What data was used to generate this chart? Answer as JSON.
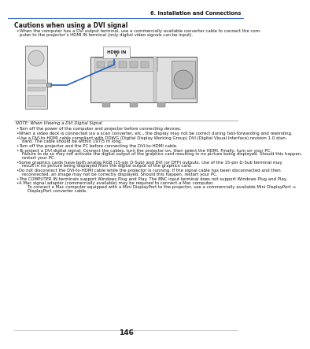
{
  "page_num": "146",
  "chapter_header": "6. Installation and Connections",
  "section_title": "Cautions when using a DVI signal",
  "bullet_intro_line1": "When the computer has a DVI output terminal, use a commercially available converter cable to connect the com-",
  "bullet_intro_line2": "puter to the projector’s HDMI IN terminal (only digital video signals can be input).",
  "note_title": "NOTE: When Viewing a DVI Digital Signal",
  "note_bullets": [
    "Turn off the power of the computer and projector before connecting devices.",
    "When a video deck is connected via a scan converter, etc., the display may not be correct during fast-forwarding and rewinding.",
    "Use a DVI-to-HDMI cable compliant with DDWG (Digital Display Working Group) DVI (Digital Visual Interface) revision 1.0 stan-\ndard. The cable should be within 197/5 m long.",
    "Turn off the projector and the PC before connecting the DVI-to-HDMI cable.",
    "To project a DVI digital signal: Connect the cables, turn the projector on, then select the HDMI. Finally, turn on your PC.\nFailure to do so may not activate the digital output of the graphics card resulting in no picture being displayed. Should this happen,\nrestart your PC.",
    "Some graphics cards have both analog RGB (15-pin D-Sub) and DVI (or DFP) outputs. Use of the 15-pin D-Sub terminal may\nresult in no picture being displayed from the digital output of the graphics card.",
    "Do not disconnect the DVI-to-HDMI cable while the projector is running. If the signal cable has been disconnected and then\nreconnected, an image may not be correctly displayed. Should this happen, restart your PC.",
    "The COMPUTER IN terminals support Windows Plug and Play. The BNC input terminal does not support Windows Plug and Play.",
    "A Mac signal adapter (commercially available) may be required to connect a Mac computer.\n    To connect a Mac computer equipped with a Mini DisplayPort to the projector, use a commercially available Mini DisplayPort →\n    DisplayPort converter cable."
  ],
  "bg_color": "#ffffff",
  "header_line_color": "#4472c4",
  "body_text_color": "#1a1a1a",
  "font_size_chapter": 4.8,
  "font_size_section": 5.5,
  "font_size_body": 3.9,
  "font_size_note_title": 3.9,
  "font_size_page": 6.5
}
